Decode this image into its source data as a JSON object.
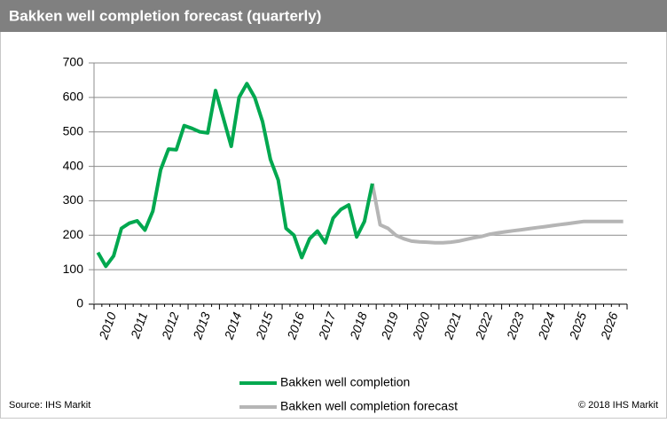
{
  "chart_data": {
    "type": "line",
    "title": "Bakken well completion forecast (quarterly)",
    "source": "Source: IHS Markit",
    "copyright": "© 2018 IHS Markit",
    "categories": [
      "2010",
      null,
      null,
      null,
      "2011",
      null,
      null,
      null,
      "2012",
      null,
      null,
      null,
      "2013",
      null,
      null,
      null,
      "2014",
      null,
      null,
      null,
      "2015",
      null,
      null,
      null,
      "2016",
      null,
      null,
      null,
      "2017",
      null,
      null,
      null,
      "2018",
      null,
      null,
      null,
      "2019",
      null,
      null,
      null,
      "2020",
      null,
      null,
      null,
      "2021",
      null,
      null,
      null,
      "2022",
      null,
      null,
      null,
      "2023",
      null,
      null,
      null,
      "2024",
      null,
      null,
      null,
      "2025",
      null,
      null,
      null,
      "2026",
      null,
      null,
      null
    ],
    "series": [
      {
        "name": "Bakken well completion",
        "color": "#00a84f",
        "values": [
          150,
          110,
          140,
          220,
          235,
          242,
          215,
          270,
          390,
          450,
          448,
          518,
          510,
          500,
          497,
          620,
          540,
          458,
          600,
          640,
          600,
          530,
          420,
          360,
          220,
          200,
          135,
          190,
          212,
          178,
          250,
          275,
          288,
          195,
          240,
          350,
          null,
          null,
          null,
          null,
          null,
          null,
          null,
          null,
          null,
          null,
          null,
          null,
          null,
          null,
          null,
          null,
          null,
          null,
          null,
          null,
          null,
          null,
          null,
          null,
          null,
          null,
          null,
          null,
          null,
          null,
          null,
          null
        ]
      },
      {
        "name": "Bakken well completion forecast",
        "color": "#b5b5b5",
        "values": [
          null,
          null,
          null,
          null,
          null,
          null,
          null,
          null,
          null,
          null,
          null,
          null,
          null,
          null,
          null,
          null,
          null,
          null,
          null,
          null,
          null,
          null,
          null,
          null,
          null,
          null,
          null,
          null,
          null,
          null,
          null,
          null,
          null,
          null,
          null,
          350,
          230,
          220,
          200,
          190,
          183,
          181,
          180,
          178,
          178,
          180,
          183,
          188,
          193,
          197,
          203,
          207,
          210,
          213,
          216,
          219,
          222,
          225,
          228,
          231,
          234,
          237,
          240,
          240,
          240,
          240,
          240,
          240
        ]
      }
    ],
    "ylim": [
      0,
      700
    ],
    "yticks": [
      0,
      100,
      200,
      300,
      400,
      500,
      600,
      700
    ],
    "grid": true
  }
}
